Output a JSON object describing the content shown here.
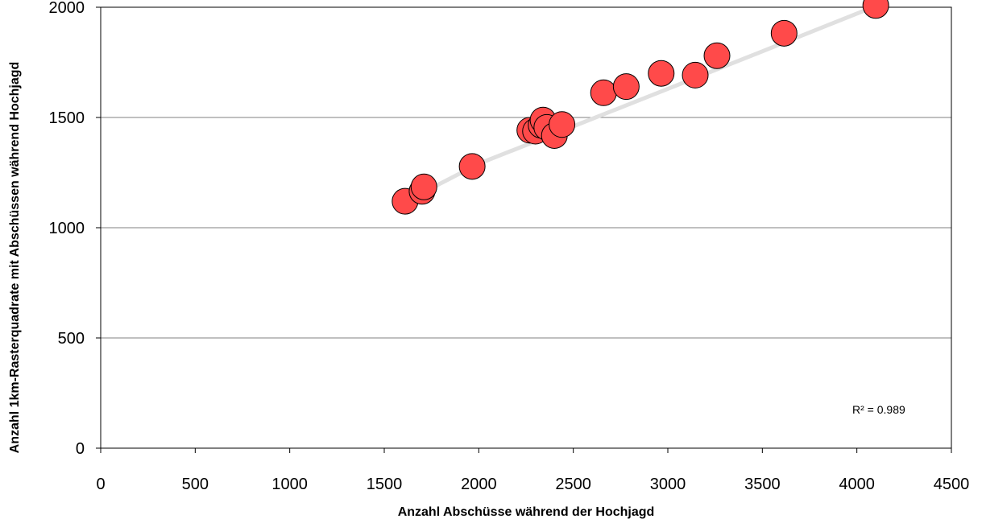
{
  "chart_data": {
    "type": "scatter",
    "title": "",
    "xlabel": "Anzahl Abschüsse während der Hochjagd",
    "ylabel": "Anzahl 1km-Rasterquadrate mit Abschüssen während Hochjagd",
    "xlim": [
      0,
      4500
    ],
    "ylim": [
      0,
      2000
    ],
    "xticks": [
      "0",
      "500",
      "1000",
      "1500",
      "2000",
      "2500",
      "3000",
      "3500",
      "4000",
      "4500"
    ],
    "yticks": [
      "0",
      "500",
      "1000",
      "1500",
      "2000"
    ],
    "grid": "horizontal",
    "legend": "none",
    "marker_color": "#ff4a4a",
    "trend_color": "#e0e0e0",
    "points": [
      {
        "x": 1610,
        "y": 1120
      },
      {
        "x": 1700,
        "y": 1165
      },
      {
        "x": 1710,
        "y": 1185
      },
      {
        "x": 1965,
        "y": 1278
      },
      {
        "x": 2270,
        "y": 1442
      },
      {
        "x": 2300,
        "y": 1438
      },
      {
        "x": 2330,
        "y": 1465
      },
      {
        "x": 2340,
        "y": 1488
      },
      {
        "x": 2360,
        "y": 1455
      },
      {
        "x": 2400,
        "y": 1418
      },
      {
        "x": 2440,
        "y": 1468
      },
      {
        "x": 2660,
        "y": 1612
      },
      {
        "x": 2780,
        "y": 1640
      },
      {
        "x": 2965,
        "y": 1700
      },
      {
        "x": 3145,
        "y": 1692
      },
      {
        "x": 3260,
        "y": 1780
      },
      {
        "x": 3615,
        "y": 1882
      },
      {
        "x": 4100,
        "y": 2008
      }
    ],
    "trendline": {
      "type": "logarithmic",
      "x": [
        1610,
        2000,
        2500,
        3000,
        3500,
        4100
      ],
      "y": [
        1118,
        1290,
        1460,
        1630,
        1800,
        2005
      ]
    },
    "annotation": "R² = 0.989"
  }
}
